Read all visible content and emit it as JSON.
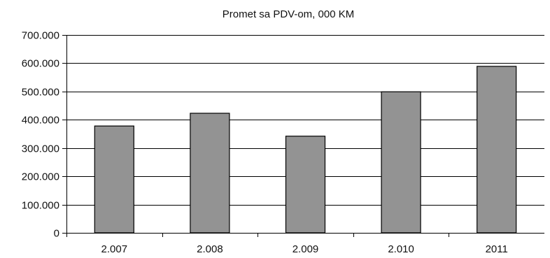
{
  "chart_data": {
    "type": "bar",
    "title": "Promet sa PDV-om, 000 KM",
    "xlabel": "",
    "ylabel": "",
    "categories": [
      "2.007",
      "2.008",
      "2.009",
      "2.010",
      "2011"
    ],
    "values": [
      378000,
      423000,
      342000,
      499000,
      589000
    ],
    "ylim": [
      0,
      700000
    ],
    "yticks": [
      0,
      100000,
      200000,
      300000,
      400000,
      500000,
      600000,
      700000
    ],
    "ytick_labels": [
      "0",
      "100.000",
      "200.000",
      "300.000",
      "400.000",
      "500.000",
      "600.000",
      "700.000"
    ],
    "grid": true,
    "legend": "none",
    "colors": {
      "bar_fill": "#939393",
      "bar_stroke": "#000000",
      "grid": "#000000"
    }
  }
}
